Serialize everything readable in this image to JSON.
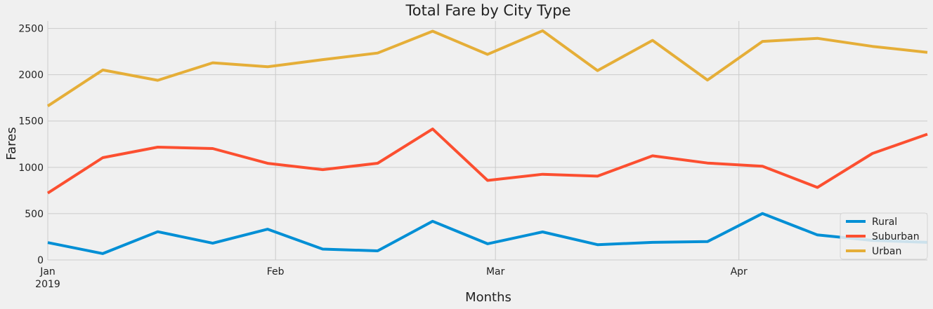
{
  "chart_data": {
    "type": "line",
    "title": "Total Fare by City Type",
    "xlabel": "Months",
    "ylabel": "Fares",
    "x": [
      "2019-01-06",
      "2019-01-13",
      "2019-01-20",
      "2019-01-27",
      "2019-02-03",
      "2019-02-10",
      "2019-02-17",
      "2019-02-24",
      "2019-03-03",
      "2019-03-10",
      "2019-03-17",
      "2019-03-24",
      "2019-03-31",
      "2019-04-07",
      "2019-04-14",
      "2019-04-21",
      "2019-04-28"
    ],
    "xlim": [
      "2019-01-06",
      "2019-04-28"
    ],
    "x_ticks": [
      {
        "date": "2019-01-06",
        "label": "Jan",
        "sublabel": "2019"
      },
      {
        "date": "2019-02-04",
        "label": "Feb",
        "sublabel": ""
      },
      {
        "date": "2019-03-04",
        "label": "Mar",
        "sublabel": ""
      },
      {
        "date": "2019-04-04",
        "label": "Apr",
        "sublabel": ""
      }
    ],
    "ylim": [
      0,
      2580
    ],
    "yticks": [
      0,
      500,
      1000,
      1500,
      2000,
      2500
    ],
    "grid": true,
    "legend_position": "bottom-right",
    "series": [
      {
        "name": "Rural",
        "color": "#008fd5",
        "values": [
          188,
          69,
          305,
          181,
          332,
          117,
          98,
          418,
          175,
          303,
          165,
          190,
          198,
          502,
          270,
          211,
          190
        ]
      },
      {
        "name": "Suburban",
        "color": "#fc4f30",
        "values": [
          722,
          1105,
          1218,
          1203,
          1043,
          975,
          1044,
          1414,
          859,
          925,
          905,
          1124,
          1046,
          1012,
          783,
          1150,
          1358
        ]
      },
      {
        "name": "Urban",
        "color": "#e5ae38",
        "values": [
          1662,
          2051,
          1940,
          2129,
          2086,
          2163,
          2234,
          2470,
          2220,
          2475,
          2045,
          2371,
          1942,
          2360,
          2393,
          2306,
          2242
        ]
      }
    ]
  }
}
